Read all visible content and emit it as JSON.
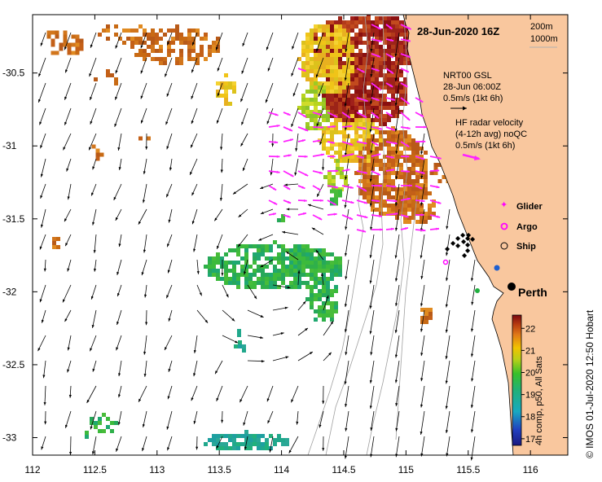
{
  "map": {
    "title": "28-Jun-2020 16Z",
    "depth_legend": [
      "200m",
      "1000m"
    ],
    "x_ticks": [
      "112",
      "112.5",
      "113",
      "113.5",
      "114",
      "114.5",
      "115",
      "115.5",
      "116"
    ],
    "y_ticks": [
      "-30.5",
      "-31",
      "-31.5",
      "-32",
      "-32.5",
      "-33"
    ],
    "lon_range": [
      112,
      116.3
    ],
    "lat_range": [
      -33.12,
      -30.1
    ],
    "city_label": "Perth",
    "credit": "© IMOS 01-Jul-2020 12:50 Hobart",
    "colorbar": {
      "label": "4h comp, p50, All Sats",
      "ticks": [
        "17",
        "18",
        "19",
        "20",
        "21",
        "22"
      ],
      "range": [
        16.7,
        22.6
      ]
    },
    "model_vector": {
      "line1": "NRT00 GSL",
      "line2": "28-Jun 06:00Z",
      "line3": "0.5m/s (1kt 6h)"
    },
    "radar_vector": {
      "line1": "HF radar velocity",
      "line2": "(4-12h avg) noQC",
      "line3": "0.5m/s (1kt 6h)"
    },
    "platforms": {
      "glider": "Glider",
      "argo": "Argo",
      "ship": "Ship"
    },
    "colors": {
      "land": "#f9c79e",
      "radar_vectors": "#ff22ff",
      "model_vectors": "#000000",
      "isobath": "#a0a0a0"
    }
  }
}
